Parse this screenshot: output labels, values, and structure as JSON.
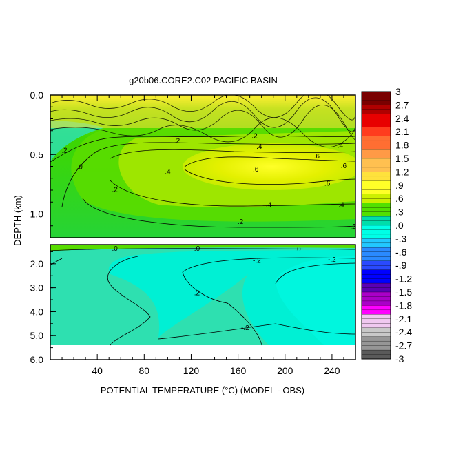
{
  "chart_data": {
    "type": "heatmap",
    "title": "g20b06.CORE2.C02 PACIFIC BASIN",
    "xlabel": "POTENTIAL TEMPERATURE (°C) (MODEL - OBS)",
    "ylabel": "DEPTH (km)",
    "xlim": [
      0,
      260
    ],
    "x_ticks": [
      40,
      80,
      120,
      160,
      200,
      240
    ],
    "x_tick_labels": [
      "40",
      "80",
      "120",
      "160",
      "200",
      "240"
    ],
    "upper_panel": {
      "ylim": [
        0.0,
        1.2
      ],
      "y_ticks": [
        0.0,
        0.5,
        1.0
      ],
      "y_tick_labels": [
        "0.0",
        "0.5",
        "1.0"
      ]
    },
    "lower_panel": {
      "ylim": [
        1.2,
        6.0
      ],
      "data_max_depth": 5.35,
      "y_ticks": [
        2.0,
        3.0,
        4.0,
        5.0,
        6.0
      ],
      "y_tick_labels": [
        "2.0",
        "3.0",
        "4.0",
        "5.0",
        "6.0"
      ]
    },
    "colorbar": {
      "min": -3,
      "max": 3,
      "step": 0.1,
      "labels": [
        "3",
        "2.7",
        "2.4",
        "2.1",
        "1.8",
        "1.5",
        "1.2",
        ".9",
        ".6",
        ".3",
        ".0",
        "-.3",
        "-.6",
        "-.9",
        "-1.2",
        "-1.5",
        "-1.8",
        "-2.1",
        "-2.4",
        "-2.7",
        "-3"
      ],
      "colors": [
        "#7a0000",
        "#b00000",
        "#e80000",
        "#ff3c1e",
        "#ff6e32",
        "#ff9a46",
        "#ffc050",
        "#ffe23c",
        "#ffff28",
        "#cdf000",
        "#52e000",
        "#00ddaa",
        "#00ffe6",
        "#22c8ff",
        "#2a8aff",
        "#2a4aff",
        "#0000ff",
        "#5a00b4",
        "#aa00c8",
        "#ff00ff",
        "#f0c8f0",
        "#c8c8c8",
        "#969696",
        "#5a5a5a"
      ]
    },
    "contour_labels": [
      {
        "panel": "upper",
        "text": ".2",
        "x": 12,
        "y": 0.46
      },
      {
        "panel": "upper",
        "text": ".0",
        "x": 25,
        "y": 0.6
      },
      {
        "panel": "upper",
        "text": ".2",
        "x": 55,
        "y": 0.79
      },
      {
        "panel": "upper",
        "text": ".2",
        "x": 108,
        "y": 0.38
      },
      {
        "panel": "upper",
        "text": ".4",
        "x": 100,
        "y": 0.64
      },
      {
        "panel": "upper",
        "text": ".2",
        "x": 174,
        "y": 0.34
      },
      {
        "panel": "upper",
        "text": ".4",
        "x": 178,
        "y": 0.43
      },
      {
        "panel": "upper",
        "text": ".6",
        "x": 175,
        "y": 0.62
      },
      {
        "panel": "upper",
        "text": ".6",
        "x": 250,
        "y": 0.59
      },
      {
        "panel": "upper",
        "text": ".4",
        "x": 247,
        "y": 0.42
      },
      {
        "panel": "upper",
        "text": ".6",
        "x": 227,
        "y": 0.51
      },
      {
        "panel": "upper",
        "text": ".6",
        "x": 236,
        "y": 0.74
      },
      {
        "panel": "upper",
        "text": ".4",
        "x": 186,
        "y": 0.92
      },
      {
        "panel": "upper",
        "text": ".4",
        "x": 248,
        "y": 0.92
      },
      {
        "panel": "upper",
        "text": ".2",
        "x": 162,
        "y": 1.06
      },
      {
        "panel": "upper",
        "text": ".2",
        "x": 258,
        "y": 1.1
      },
      {
        "panel": "lower",
        "text": ".0",
        "x": 55,
        "y": 1.35
      },
      {
        "panel": "lower",
        "text": ".0",
        "x": 125,
        "y": 1.35
      },
      {
        "panel": "lower",
        "text": ".0",
        "x": 211,
        "y": 1.37
      },
      {
        "panel": "lower",
        "text": "-.2",
        "x": 176,
        "y": 1.85
      },
      {
        "panel": "lower",
        "text": "-.2",
        "x": 240,
        "y": 1.8
      },
      {
        "panel": "lower",
        "text": "-.2",
        "x": 124,
        "y": 3.2
      },
      {
        "panel": "lower",
        "text": "-.2",
        "x": 166,
        "y": 4.65
      }
    ]
  }
}
